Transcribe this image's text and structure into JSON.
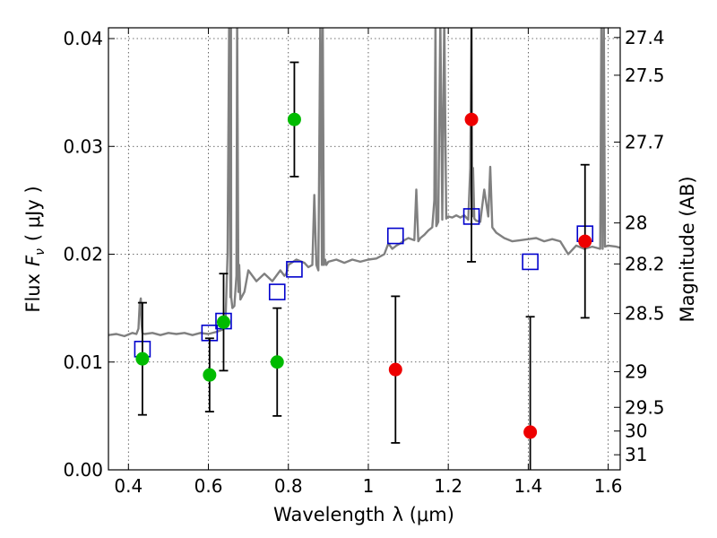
{
  "chart_data": {
    "type": "scatter",
    "xlabel": "Wavelength",
    "xlabel_symbol": "λ (μm)",
    "ylabel": "Flux",
    "ylabel_symbol": "F",
    "ylabel_sub": "ν",
    "ylabel_unit": "( μJy )",
    "y2label": "Magnitude (AB)",
    "xlim": [
      0.35,
      1.63
    ],
    "ylim": [
      0.0,
      0.041
    ],
    "grid": true,
    "x_ticks": [
      0.4,
      0.6,
      0.8,
      1.0,
      1.2,
      1.4,
      1.6
    ],
    "x_tick_labels": [
      "0.4",
      "0.6",
      "0.8",
      "1",
      "1.2",
      "1.4",
      "1.6"
    ],
    "y_ticks": [
      0.0,
      0.01,
      0.02,
      0.03,
      0.04
    ],
    "y_tick_labels": [
      "0.00",
      "0.01",
      "0.02",
      "0.03",
      "0.04"
    ],
    "mag_ticks": [
      {
        "label": "27.4",
        "flux": 0.0401
      },
      {
        "label": "27.5",
        "flux": 0.0366
      },
      {
        "label": "27.7",
        "flux": 0.0304
      },
      {
        "label": "28",
        "flux": 0.0229
      },
      {
        "label": "28.2",
        "flux": 0.0191
      },
      {
        "label": "28.5",
        "flux": 0.0145
      },
      {
        "label": "29",
        "flux": 0.0091
      },
      {
        "label": "29.5",
        "flux": 0.0058
      },
      {
        "label": "30",
        "flux": 0.0036
      },
      {
        "label": "31",
        "flux": 0.0014
      }
    ],
    "series": [
      {
        "name": "model-spectrum",
        "kind": "line",
        "color": "#808080",
        "x": [
          0.35,
          0.37,
          0.39,
          0.41,
          0.42,
          0.425,
          0.428,
          0.431,
          0.433,
          0.435,
          0.44,
          0.46,
          0.48,
          0.5,
          0.52,
          0.54,
          0.56,
          0.58,
          0.6,
          0.62,
          0.635,
          0.643,
          0.648,
          0.652,
          0.655,
          0.656,
          0.6565,
          0.657,
          0.66,
          0.665,
          0.67,
          0.672,
          0.675,
          0.677,
          0.68,
          0.69,
          0.7,
          0.72,
          0.74,
          0.76,
          0.78,
          0.79,
          0.795,
          0.8,
          0.82,
          0.84,
          0.85,
          0.86,
          0.865,
          0.87,
          0.875,
          0.88,
          0.884,
          0.886,
          0.889,
          0.892,
          0.895,
          0.9,
          0.92,
          0.94,
          0.96,
          0.98,
          1.0,
          1.02,
          1.04,
          1.05,
          1.06,
          1.07,
          1.08,
          1.09,
          1.1,
          1.115,
          1.12,
          1.125,
          1.13,
          1.14,
          1.15,
          1.16,
          1.165,
          1.168,
          1.17,
          1.175,
          1.18,
          1.185,
          1.19,
          1.195,
          1.2,
          1.21,
          1.22,
          1.23,
          1.24,
          1.25,
          1.255,
          1.258,
          1.26,
          1.262,
          1.265,
          1.27,
          1.28,
          1.29,
          1.3,
          1.305,
          1.31,
          1.32,
          1.34,
          1.36,
          1.38,
          1.4,
          1.42,
          1.44,
          1.46,
          1.48,
          1.5,
          1.52,
          1.54,
          1.56,
          1.58,
          1.583,
          1.586,
          1.589,
          1.592,
          1.6,
          1.62,
          1.63
        ],
        "y": [
          0.0125,
          0.0126,
          0.0124,
          0.0127,
          0.0126,
          0.0131,
          0.0153,
          0.0159,
          0.0135,
          0.0127,
          0.0126,
          0.0127,
          0.0125,
          0.0127,
          0.0126,
          0.0127,
          0.0125,
          0.0127,
          0.0126,
          0.0128,
          0.013,
          0.014,
          0.02,
          0.042,
          0.016,
          0.023,
          0.042,
          0.016,
          0.015,
          0.0152,
          0.018,
          0.042,
          0.0165,
          0.019,
          0.0158,
          0.0165,
          0.0185,
          0.0175,
          0.0182,
          0.0175,
          0.0185,
          0.018,
          0.0182,
          0.019,
          0.0195,
          0.0192,
          0.0188,
          0.019,
          0.0255,
          0.019,
          0.0185,
          0.042,
          0.019,
          0.042,
          0.019,
          0.0195,
          0.019,
          0.0193,
          0.0195,
          0.0192,
          0.0195,
          0.0193,
          0.0195,
          0.0196,
          0.02,
          0.021,
          0.0205,
          0.0208,
          0.021,
          0.0213,
          0.0215,
          0.0213,
          0.026,
          0.0212,
          0.0215,
          0.0218,
          0.0222,
          0.0225,
          0.025,
          0.042,
          0.0226,
          0.023,
          0.042,
          0.0232,
          0.042,
          0.0233,
          0.0235,
          0.0234,
          0.0236,
          0.0234,
          0.0236,
          0.0232,
          0.028,
          0.042,
          0.0235,
          0.028,
          0.0233,
          0.0231,
          0.023,
          0.026,
          0.0235,
          0.0281,
          0.0225,
          0.022,
          0.0215,
          0.0212,
          0.0213,
          0.0214,
          0.0215,
          0.0212,
          0.0214,
          0.0212,
          0.02,
          0.0208,
          0.0205,
          0.0207,
          0.0205,
          0.042,
          0.0205,
          0.042,
          0.0207,
          0.0208,
          0.0207,
          0.0206
        ]
      },
      {
        "name": "model-photometry",
        "kind": "open-square",
        "color": "#0000cc",
        "x": [
          0.435,
          0.603,
          0.638,
          0.772,
          0.815,
          1.068,
          1.258,
          1.405,
          1.542
        ],
        "y": [
          0.0112,
          0.0127,
          0.0138,
          0.0165,
          0.0186,
          0.0217,
          0.0235,
          0.0193,
          0.0219
        ]
      },
      {
        "name": "observed-optical",
        "kind": "filled-circle-errorbar",
        "color": "#00bb00",
        "x": [
          0.435,
          0.603,
          0.638,
          0.772,
          0.815
        ],
        "y": [
          0.0103,
          0.0088,
          0.0137,
          0.01,
          0.0325
        ],
        "yerr": [
          0.0052,
          0.0034,
          0.0045,
          0.005,
          0.0053
        ]
      },
      {
        "name": "observed-nir",
        "kind": "filled-circle-errorbar",
        "color": "#ee0000",
        "x": [
          1.068,
          1.258,
          1.405,
          1.542
        ],
        "y": [
          0.0093,
          0.0325,
          0.0035,
          0.0212
        ],
        "yerr": [
          0.0068,
          0.0132,
          0.0107,
          0.0071
        ]
      }
    ]
  }
}
